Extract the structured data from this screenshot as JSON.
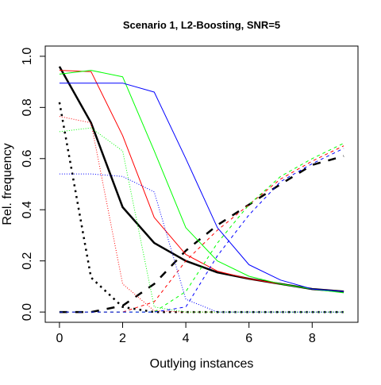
{
  "chart_data": {
    "type": "line",
    "title": "Scenario 1, L2-Boosting, SNR=5",
    "xlabel": "Outlying instances",
    "ylabel": "Rel. frequency",
    "xlim": [
      -0.45,
      9.45
    ],
    "ylim": [
      -0.04,
      1.04
    ],
    "x_ticks": [
      0,
      2,
      4,
      6,
      8
    ],
    "y_ticks": [
      0.0,
      0.2,
      0.4,
      0.6,
      0.8,
      1.0
    ],
    "x_tick_labels": [
      "0",
      "2",
      "4",
      "6",
      "8"
    ],
    "y_tick_labels": [
      "0.0",
      "0.2",
      "0.4",
      "0.6",
      "0.8",
      "1.0"
    ],
    "grid": false,
    "x": [
      0,
      1,
      2,
      3,
      4,
      5,
      6,
      7,
      8,
      9
    ],
    "series": [
      {
        "color": "#000000",
        "line_style": "solid",
        "line_width": 2.5,
        "values": [
          0.96,
          0.74,
          0.41,
          0.27,
          0.2,
          0.155,
          0.13,
          0.11,
          0.09,
          0.08
        ]
      },
      {
        "color": "#000000",
        "line_style": "dotted",
        "line_width": 2.5,
        "values": [
          0.82,
          0.135,
          0.02,
          0.0,
          0.0,
          0.0,
          0.0,
          0.0,
          0.0,
          0.0
        ]
      },
      {
        "color": "#000000",
        "line_style": "dashed",
        "line_width": 2.5,
        "values": [
          0.0,
          0.0,
          0.025,
          0.11,
          0.24,
          0.34,
          0.42,
          0.5,
          0.575,
          0.61
        ]
      },
      {
        "color": "#ff0000",
        "line_style": "solid",
        "line_width": 1,
        "values": [
          0.945,
          0.94,
          0.69,
          0.37,
          0.225,
          0.16,
          0.13,
          0.11,
          0.09,
          0.08
        ]
      },
      {
        "color": "#ff0000",
        "line_style": "dotted",
        "line_width": 1,
        "values": [
          0.765,
          0.74,
          0.11,
          0.005,
          0.0,
          0.0,
          0.0,
          0.0,
          0.0,
          0.0
        ]
      },
      {
        "color": "#ff0000",
        "line_style": "dashed",
        "line_width": 1,
        "values": [
          0.0,
          0.0,
          0.0,
          0.04,
          0.2,
          0.32,
          0.42,
          0.52,
          0.59,
          0.65
        ]
      },
      {
        "color": "#00ff00",
        "line_style": "solid",
        "line_width": 1,
        "values": [
          0.93,
          0.945,
          0.92,
          0.63,
          0.33,
          0.2,
          0.14,
          0.11,
          0.09,
          0.075
        ]
      },
      {
        "color": "#00ff00",
        "line_style": "dotted",
        "line_width": 1,
        "values": [
          0.705,
          0.72,
          0.63,
          0.02,
          0.0,
          0.0,
          0.0,
          0.0,
          0.0,
          0.0
        ]
      },
      {
        "color": "#00ff00",
        "line_style": "dashed",
        "line_width": 1,
        "values": [
          0.0,
          0.0,
          0.0,
          0.0,
          0.08,
          0.27,
          0.42,
          0.53,
          0.6,
          0.66
        ]
      },
      {
        "color": "#0000ff",
        "line_style": "solid",
        "line_width": 1,
        "values": [
          0.895,
          0.895,
          0.895,
          0.86,
          0.6,
          0.33,
          0.185,
          0.125,
          0.09,
          0.08
        ]
      },
      {
        "color": "#0000ff",
        "line_style": "dotted",
        "line_width": 1,
        "values": [
          0.54,
          0.54,
          0.53,
          0.47,
          0.05,
          0.0,
          0.0,
          0.0,
          0.0,
          0.0
        ]
      },
      {
        "color": "#0000ff",
        "line_style": "dashed",
        "line_width": 1,
        "values": [
          0.0,
          0.0,
          0.0,
          0.0,
          0.02,
          0.22,
          0.38,
          0.51,
          0.58,
          0.64
        ]
      }
    ]
  }
}
